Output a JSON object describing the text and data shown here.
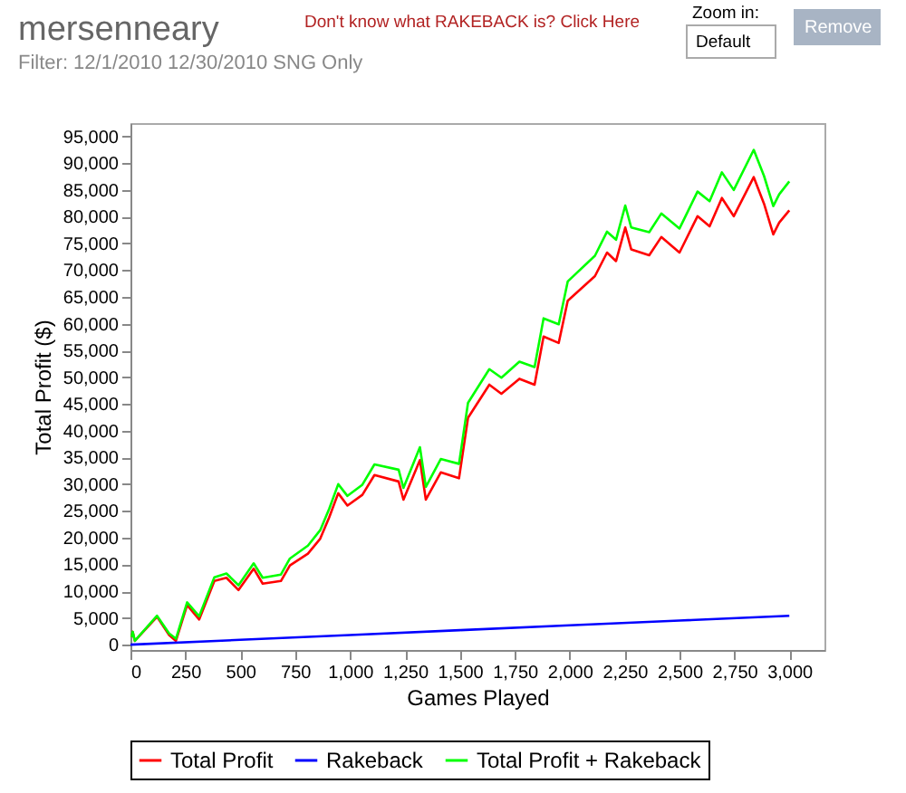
{
  "chart_data": {
    "type": "line",
    "title": "mersenneary",
    "subtitle": "Filter: 12/1/2010 12/30/2010 SNG Only",
    "annotations": [
      "Don't know what RAKEBACK is? Click Here",
      "Zoom in:",
      "Default",
      "Remove"
    ],
    "xlabel": "Games Played",
    "ylabel": "Total Profit ($)",
    "x": [
      5,
      10,
      20,
      121,
      176,
      207,
      258,
      313,
      382,
      437,
      492,
      561,
      602,
      685,
      726,
      808,
      864,
      905,
      946,
      988,
      1056,
      1111,
      1221,
      1243,
      1318,
      1345,
      1413,
      1496,
      1537,
      1634,
      1689,
      1771,
      1840,
      1881,
      1950,
      1991,
      2115,
      2170,
      2211,
      2253,
      2280,
      2362,
      2417,
      2500,
      2582,
      2637,
      2693,
      2747,
      2838,
      2885,
      2927,
      2954,
      3000
    ],
    "series": [
      {
        "name": "Total Profit",
        "color": "#ff0000",
        "values": [
          1400,
          2400,
          700,
          5200,
          1800,
          700,
          7400,
          4700,
          11900,
          12500,
          10200,
          14200,
          11400,
          11900,
          14800,
          17000,
          19800,
          23800,
          28300,
          26000,
          28000,
          31700,
          30500,
          27100,
          34500,
          27100,
          32200,
          31100,
          42400,
          48600,
          46900,
          49700,
          48600,
          57600,
          56400,
          64300,
          68900,
          73300,
          71700,
          78000,
          73900,
          72800,
          76200,
          73300,
          80100,
          78200,
          83500,
          80100,
          87400,
          82400,
          76700,
          78900,
          81200
        ]
      },
      {
        "name": "Rakeback",
        "color": "#0000ff",
        "x": [
          0,
          500,
          1000,
          1500,
          2000,
          2500,
          3000
        ],
        "values": [
          0,
          900,
          1800,
          2700,
          3600,
          4500,
          5400
        ]
      },
      {
        "name": "Total Profit + Rakeback",
        "color": "#00ff00",
        "values": [
          1400,
          2400,
          700,
          5400,
          2100,
          1100,
          7900,
          5300,
          12600,
          13300,
          11100,
          15200,
          12500,
          13100,
          16100,
          18500,
          21400,
          25400,
          30000,
          27800,
          29900,
          33700,
          32700,
          29300,
          36900,
          29500,
          34700,
          33800,
          45200,
          51500,
          49900,
          52900,
          51900,
          61000,
          59900,
          67900,
          72700,
          77200,
          75700,
          82100,
          78000,
          77100,
          80600,
          77800,
          84700,
          82900,
          88300,
          85000,
          92500,
          87600,
          82000,
          84200,
          86600
        ]
      }
    ],
    "xlim": [
      0,
      3160
    ],
    "xticks": [
      0,
      250,
      500,
      750,
      {
        "value": 1000,
        "label": "1,000"
      },
      {
        "value": 1250,
        "label": "1,250"
      },
      {
        "value": 1500,
        "label": "1,500"
      },
      {
        "value": 1750,
        "label": "1,750"
      },
      {
        "value": 2000,
        "label": "2,000"
      },
      {
        "value": 2250,
        "label": "2,250"
      },
      {
        "value": 2500,
        "label": "2,500"
      },
      {
        "value": 2750,
        "label": "2,750"
      },
      {
        "value": 3000,
        "label": "3,000"
      }
    ],
    "ylim": [
      -1000,
      97500
    ],
    "yticks": [
      0,
      {
        "value": 5000,
        "label": "5,000"
      },
      {
        "value": 10000,
        "label": "10,000"
      },
      {
        "value": 15000,
        "label": "15,000"
      },
      {
        "value": 20000,
        "label": "20,000"
      },
      {
        "value": 25000,
        "label": "25,000"
      },
      {
        "value": 30000,
        "label": "30,000"
      },
      {
        "value": 35000,
        "label": "35,000"
      },
      {
        "value": 40000,
        "label": "40,000"
      },
      {
        "value": 45000,
        "label": "45,000"
      },
      {
        "value": 50000,
        "label": "50,000"
      },
      {
        "value": 55000,
        "label": "55,000"
      },
      {
        "value": 60000,
        "label": "60,000"
      },
      {
        "value": 65000,
        "label": "65,000"
      },
      {
        "value": 70000,
        "label": "70,000"
      },
      {
        "value": 75000,
        "label": "75,000"
      },
      {
        "value": 80000,
        "label": "80,000"
      },
      {
        "value": 85000,
        "label": "85,000"
      },
      {
        "value": 90000,
        "label": "90,000"
      },
      {
        "value": 95000,
        "label": "95,000"
      }
    ],
    "grid": false,
    "legend": "bottom",
    "marker": "none",
    "line_style": "solid"
  }
}
